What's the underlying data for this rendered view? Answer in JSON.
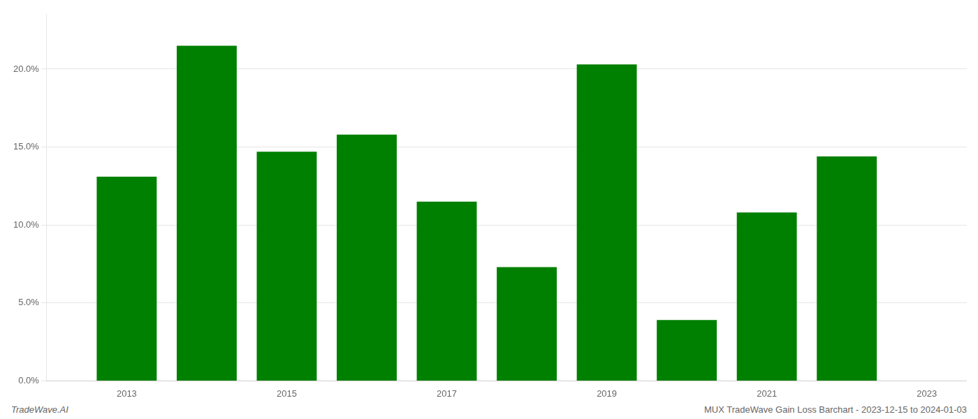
{
  "chart_data": {
    "type": "bar",
    "x": [
      2013,
      2014,
      2015,
      2016,
      2017,
      2018,
      2019,
      2020,
      2021,
      2022
    ],
    "values": [
      0.131,
      0.215,
      0.147,
      0.158,
      0.115,
      0.073,
      0.203,
      0.039,
      0.108,
      0.144
    ],
    "color": "#008000",
    "xlim": [
      2012,
      2023.5
    ],
    "xticks": [
      2013,
      2015,
      2017,
      2019,
      2021,
      2023
    ],
    "ylim": [
      0,
      0.235
    ],
    "yticks": [
      {
        "value": 0.0,
        "label": "0.0%"
      },
      {
        "value": 0.05,
        "label": "5.0%"
      },
      {
        "value": 0.1,
        "label": "10.0%"
      },
      {
        "value": 0.15,
        "label": "15.0%"
      },
      {
        "value": 0.2,
        "label": "20.0%"
      }
    ],
    "grid": true,
    "annotations": [
      "TradeWave.AI",
      "MUX TradeWave Gain Loss Barchart - 2023-12-15 to 2024-01-03"
    ]
  }
}
